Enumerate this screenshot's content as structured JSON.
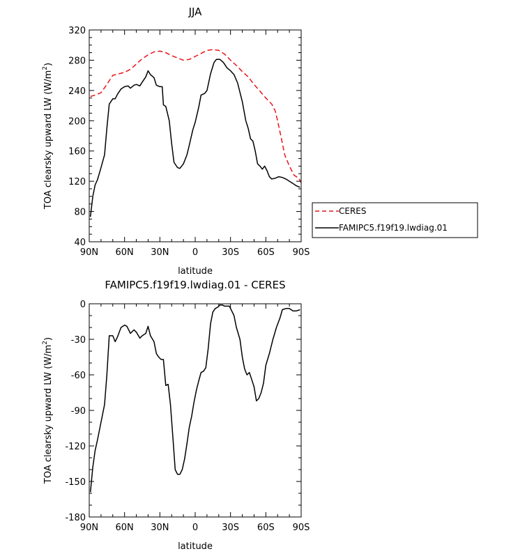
{
  "chart_data": [
    {
      "type": "line",
      "title": "JJA",
      "xlabel": "latitude",
      "ylabel": "TOA clearsky upward LW (W/m²)",
      "xlim": [
        90,
        -90
      ],
      "ylim": [
        40,
        320
      ],
      "x_ticks": [
        90,
        60,
        30,
        0,
        -30,
        -60,
        -90
      ],
      "x_tick_labels": [
        "90N",
        "60N",
        "30N",
        "0",
        "30S",
        "60S",
        "90S"
      ],
      "y_ticks": [
        40,
        80,
        120,
        160,
        200,
        240,
        280,
        320
      ],
      "grid": false,
      "legend": {
        "placement": "outside-right"
      },
      "series": [
        {
          "name": "CERES",
          "color": "#e8141b",
          "dash": "dashed",
          "points": [
            [
              89,
              232
            ],
            [
              85,
              234
            ],
            [
              80,
              237
            ],
            [
              75,
              248
            ],
            [
              70,
              260
            ],
            [
              65,
              262
            ],
            [
              60,
              264
            ],
            [
              55,
              268
            ],
            [
              50,
              275
            ],
            [
              45,
              282
            ],
            [
              40,
              287
            ],
            [
              35,
              291
            ],
            [
              30,
              292
            ],
            [
              25,
              290
            ],
            [
              20,
              286
            ],
            [
              15,
              283
            ],
            [
              10,
              280
            ],
            [
              5,
              281
            ],
            [
              0,
              285
            ],
            [
              -5,
              289
            ],
            [
              -10,
              293
            ],
            [
              -15,
              294
            ],
            [
              -20,
              293
            ],
            [
              -25,
              288
            ],
            [
              -30,
              280
            ],
            [
              -35,
              273
            ],
            [
              -40,
              265
            ],
            [
              -45,
              258
            ],
            [
              -50,
              248
            ],
            [
              -55,
              239
            ],
            [
              -60,
              230
            ],
            [
              -65,
              222
            ],
            [
              -68,
              213
            ],
            [
              -70,
              200
            ],
            [
              -73,
              178
            ],
            [
              -76,
              155
            ],
            [
              -80,
              140
            ],
            [
              -84,
              128
            ],
            [
              -88,
              124
            ],
            [
              -90,
              118
            ]
          ]
        },
        {
          "name": "FAMIPC5.f19f19.lwdiag.01",
          "color": "#000000",
          "dash": "solid",
          "points": [
            [
              89,
              73
            ],
            [
              87,
              100
            ],
            [
              85,
              115
            ],
            [
              83,
              122
            ],
            [
              80,
              138
            ],
            [
              77,
              155
            ],
            [
              75,
              190
            ],
            [
              73,
              222
            ],
            [
              70,
              229
            ],
            [
              68,
              229
            ],
            [
              66,
              235
            ],
            [
              63,
              242
            ],
            [
              60,
              245
            ],
            [
              57,
              246
            ],
            [
              55,
              243
            ],
            [
              52,
              247
            ],
            [
              50,
              248
            ],
            [
              47,
              246
            ],
            [
              45,
              251
            ],
            [
              42,
              258
            ],
            [
              40,
              266
            ],
            [
              38,
              261
            ],
            [
              35,
              257
            ],
            [
              33,
              247
            ],
            [
              30,
              245
            ],
            [
              28,
              245
            ],
            [
              27,
              221
            ],
            [
              25,
              219
            ],
            [
              22,
              200
            ],
            [
              20,
              170
            ],
            [
              18,
              145
            ],
            [
              15,
              138
            ],
            [
              13,
              137
            ],
            [
              10,
              143
            ],
            [
              7,
              155
            ],
            [
              5,
              168
            ],
            [
              2,
              188
            ],
            [
              0,
              198
            ],
            [
              -3,
              218
            ],
            [
              -5,
              234
            ],
            [
              -8,
              236
            ],
            [
              -10,
              240
            ],
            [
              -13,
              262
            ],
            [
              -16,
              277
            ],
            [
              -18,
              281
            ],
            [
              -21,
              281
            ],
            [
              -24,
              277
            ],
            [
              -27,
              270
            ],
            [
              -30,
              266
            ],
            [
              -33,
              261
            ],
            [
              -36,
              250
            ],
            [
              -40,
              225
            ],
            [
              -43,
              200
            ],
            [
              -45,
              190
            ],
            [
              -47,
              176
            ],
            [
              -49,
              173
            ],
            [
              -51,
              160
            ],
            [
              -53,
              143
            ],
            [
              -55,
              140
            ],
            [
              -57,
              136
            ],
            [
              -59,
              140
            ],
            [
              -61,
              134
            ],
            [
              -63,
              126
            ],
            [
              -65,
              123
            ],
            [
              -68,
              124
            ],
            [
              -71,
              126
            ],
            [
              -74,
              125
            ],
            [
              -77,
              123
            ],
            [
              -80,
              120
            ],
            [
              -83,
              117
            ],
            [
              -86,
              114
            ],
            [
              -89,
              112
            ]
          ]
        }
      ]
    },
    {
      "type": "line",
      "title": "FAMIPC5.f19f19.lwdiag.01 - CERES",
      "xlabel": "latitude",
      "ylabel": "TOA clearsky upward LW (W/m²)",
      "xlim": [
        90,
        -90
      ],
      "ylim": [
        -180,
        0
      ],
      "x_ticks": [
        90,
        60,
        30,
        0,
        -30,
        -60,
        -90
      ],
      "x_tick_labels": [
        "90N",
        "60N",
        "30N",
        "0",
        "30S",
        "60S",
        "90S"
      ],
      "y_ticks": [
        -180,
        -150,
        -120,
        -90,
        -60,
        -30,
        0
      ],
      "grid": false,
      "series": [
        {
          "color": "#000000",
          "dash": "solid",
          "points": [
            [
              89,
              -159
            ],
            [
              87,
              -138
            ],
            [
              85,
              -124
            ],
            [
              83,
              -115
            ],
            [
              80,
              -100
            ],
            [
              77,
              -85
            ],
            [
              75,
              -60
            ],
            [
              73,
              -27
            ],
            [
              70,
              -27
            ],
            [
              68,
              -32
            ],
            [
              66,
              -28
            ],
            [
              63,
              -20
            ],
            [
              60,
              -18
            ],
            [
              58,
              -19
            ],
            [
              55,
              -25
            ],
            [
              52,
              -22
            ],
            [
              50,
              -24
            ],
            [
              47,
              -29
            ],
            [
              45,
              -27
            ],
            [
              42,
              -25
            ],
            [
              40,
              -19
            ],
            [
              38,
              -27
            ],
            [
              35,
              -32
            ],
            [
              33,
              -42
            ],
            [
              31,
              -45
            ],
            [
              29,
              -47
            ],
            [
              27,
              -47
            ],
            [
              25,
              -69
            ],
            [
              23,
              -68
            ],
            [
              21,
              -85
            ],
            [
              19,
              -112
            ],
            [
              17,
              -140
            ],
            [
              15,
              -144
            ],
            [
              13,
              -144
            ],
            [
              11,
              -140
            ],
            [
              9,
              -131
            ],
            [
              7,
              -118
            ],
            [
              5,
              -104
            ],
            [
              3,
              -95
            ],
            [
              1,
              -83
            ],
            [
              -1,
              -73
            ],
            [
              -3,
              -65
            ],
            [
              -5,
              -58
            ],
            [
              -7,
              -57
            ],
            [
              -9,
              -54
            ],
            [
              -11,
              -38
            ],
            [
              -13,
              -17
            ],
            [
              -15,
              -7
            ],
            [
              -17,
              -4
            ],
            [
              -19,
              -3
            ],
            [
              -21,
              -1
            ],
            [
              -23,
              -1
            ],
            [
              -25,
              -2
            ],
            [
              -27,
              -2
            ],
            [
              -29,
              -2
            ],
            [
              -31,
              -6
            ],
            [
              -33,
              -10
            ],
            [
              -35,
              -20
            ],
            [
              -38,
              -30
            ],
            [
              -40,
              -45
            ],
            [
              -42,
              -55
            ],
            [
              -44,
              -60
            ],
            [
              -46,
              -58
            ],
            [
              -48,
              -64
            ],
            [
              -50,
              -70
            ],
            [
              -52,
              -82
            ],
            [
              -54,
              -80
            ],
            [
              -56,
              -75
            ],
            [
              -58,
              -67
            ],
            [
              -60,
              -52
            ],
            [
              -63,
              -42
            ],
            [
              -66,
              -30
            ],
            [
              -69,
              -20
            ],
            [
              -72,
              -12
            ],
            [
              -74,
              -5
            ],
            [
              -77,
              -4
            ],
            [
              -80,
              -4
            ],
            [
              -83,
              -6
            ],
            [
              -86,
              -6
            ],
            [
              -89,
              -5
            ]
          ]
        }
      ]
    }
  ]
}
